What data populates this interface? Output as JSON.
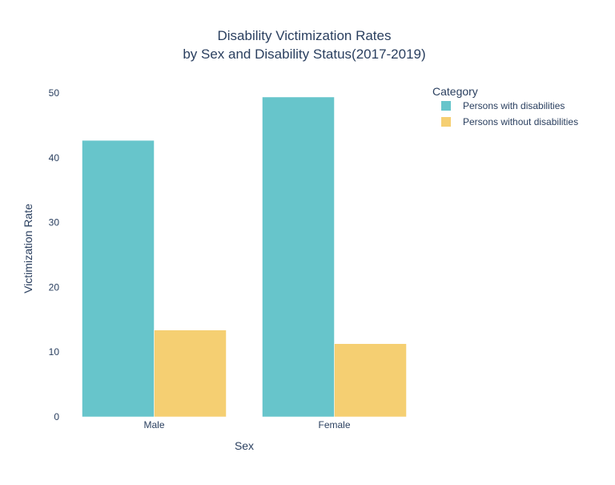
{
  "chart_data": {
    "type": "bar",
    "title_lines": [
      "Disability Victimization Rates",
      "by Sex and Disability Status(2017-2019)"
    ],
    "xlabel": "Sex",
    "ylabel": "Victimization Rate",
    "categories": [
      "Male",
      "Female"
    ],
    "ylim": [
      0,
      52
    ],
    "yticks": [
      0,
      10,
      20,
      30,
      40,
      50
    ],
    "legend": {
      "title": "Category",
      "placement": "top-right"
    },
    "series": [
      {
        "name": "Persons with disabilities",
        "values": [
          42.7,
          49.4
        ],
        "color": "#67c5cb"
      },
      {
        "name": "Persons without disabilities",
        "values": [
          13.4,
          11.3
        ],
        "color": "#f5cf72"
      }
    ],
    "grid": false
  }
}
